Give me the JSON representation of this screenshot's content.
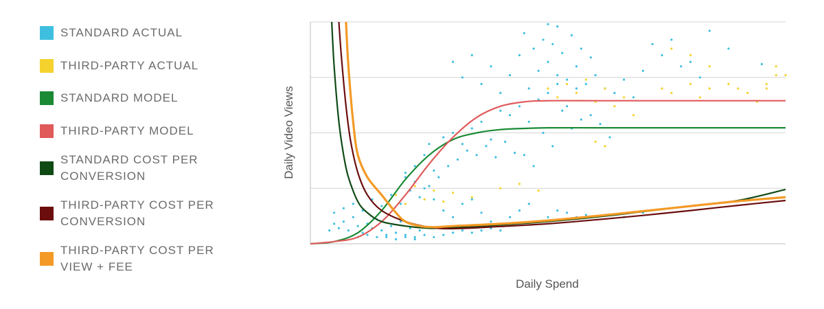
{
  "chart_data": {
    "type": "scatter",
    "title": "",
    "xlabel": "Daily Spend",
    "ylabel": "Daily Video Views",
    "xlim": [
      0,
      100
    ],
    "ylim": [
      0,
      100
    ],
    "grid": true,
    "legend_position": "left",
    "colors": {
      "standard_actual": "#3fbfe0",
      "third_party_actual": "#f5d22e",
      "standard_model": "#1a8a35",
      "third_party_model": "#e05a5a",
      "standard_cpc": "#0f4a14",
      "third_party_cpc": "#6b0d0d",
      "third_party_cpv_fee": "#f39a26"
    },
    "legend": [
      {
        "key": "standard_actual",
        "label": "STANDARD ACTUAL"
      },
      {
        "key": "third_party_actual",
        "label": "THIRD-PARTY ACTUAL"
      },
      {
        "key": "standard_model",
        "label": "STANDARD MODEL"
      },
      {
        "key": "third_party_model",
        "label": "THIRD-PARTY MODEL"
      },
      {
        "key": "standard_cpc",
        "label": "STANDARD COST PER CONVERSION"
      },
      {
        "key": "third_party_cpc",
        "label": "THIRD-PARTY COST PER CONVERSION"
      },
      {
        "key": "third_party_cpv_fee",
        "label": "THIRD-PARTY COST PER VIEW + FEE"
      }
    ],
    "series": [
      {
        "name": "STANDARD ACTUAL",
        "key": "standard_actual",
        "kind": "scatter",
        "points": [
          [
            4,
            6
          ],
          [
            5,
            9
          ],
          [
            6,
            7
          ],
          [
            7,
            10
          ],
          [
            8,
            6
          ],
          [
            9,
            12
          ],
          [
            10,
            8
          ],
          [
            11,
            5
          ],
          [
            12,
            9
          ],
          [
            13,
            7
          ],
          [
            14,
            11
          ],
          [
            15,
            6
          ],
          [
            16,
            4
          ],
          [
            17,
            8
          ],
          [
            18,
            5
          ],
          [
            19,
            10
          ],
          [
            20,
            4
          ],
          [
            21,
            7
          ],
          [
            22,
            3
          ],
          [
            23,
            6
          ],
          [
            5,
            14
          ],
          [
            7,
            16
          ],
          [
            9,
            18
          ],
          [
            11,
            15
          ],
          [
            13,
            20
          ],
          [
            15,
            17
          ],
          [
            17,
            22
          ],
          [
            19,
            18
          ],
          [
            21,
            24
          ],
          [
            23,
            21
          ],
          [
            25,
            26
          ],
          [
            27,
            30
          ],
          [
            29,
            35
          ],
          [
            31,
            38
          ],
          [
            33,
            42
          ],
          [
            35,
            40
          ],
          [
            37,
            44
          ],
          [
            39,
            39
          ],
          [
            41,
            46
          ],
          [
            43,
            41
          ],
          [
            10,
            3
          ],
          [
            12,
            4
          ],
          [
            14,
            3
          ],
          [
            16,
            3
          ],
          [
            18,
            2
          ],
          [
            20,
            3
          ],
          [
            22,
            2
          ],
          [
            24,
            4
          ],
          [
            26,
            3
          ],
          [
            28,
            4
          ],
          [
            30,
            5
          ],
          [
            32,
            6
          ],
          [
            34,
            5
          ],
          [
            36,
            6
          ],
          [
            38,
            7
          ],
          [
            40,
            6
          ],
          [
            20,
            30
          ],
          [
            22,
            35
          ],
          [
            24,
            40
          ],
          [
            25,
            45
          ],
          [
            26,
            33
          ],
          [
            28,
            48
          ],
          [
            30,
            50
          ],
          [
            32,
            45
          ],
          [
            34,
            52
          ],
          [
            36,
            55
          ],
          [
            38,
            47
          ],
          [
            40,
            60
          ],
          [
            42,
            58
          ],
          [
            44,
            62
          ],
          [
            46,
            55
          ],
          [
            48,
            65
          ],
          [
            50,
            68
          ],
          [
            52,
            72
          ],
          [
            54,
            62
          ],
          [
            56,
            70
          ],
          [
            30,
            82
          ],
          [
            32,
            75
          ],
          [
            34,
            85
          ],
          [
            36,
            72
          ],
          [
            38,
            80
          ],
          [
            40,
            68
          ],
          [
            42,
            76
          ],
          [
            44,
            85
          ],
          [
            46,
            70
          ],
          [
            48,
            78
          ],
          [
            50,
            82
          ],
          [
            52,
            76
          ],
          [
            54,
            74
          ],
          [
            56,
            80
          ],
          [
            58,
            72
          ],
          [
            60,
            76
          ],
          [
            62,
            70
          ],
          [
            64,
            68
          ],
          [
            66,
            74
          ],
          [
            68,
            66
          ],
          [
            45,
            95
          ],
          [
            47,
            88
          ],
          [
            49,
            92
          ],
          [
            51,
            90
          ],
          [
            53,
            86
          ],
          [
            55,
            94
          ],
          [
            57,
            88
          ],
          [
            59,
            84
          ],
          [
            50,
            99
          ],
          [
            52,
            98
          ],
          [
            45,
            40
          ],
          [
            47,
            35
          ],
          [
            49,
            50
          ],
          [
            51,
            44
          ],
          [
            53,
            60
          ],
          [
            55,
            52
          ],
          [
            57,
            56
          ],
          [
            59,
            58
          ],
          [
            61,
            54
          ],
          [
            63,
            48
          ],
          [
            72,
            90
          ],
          [
            74,
            85
          ],
          [
            76,
            92
          ],
          [
            78,
            80
          ],
          [
            70,
            78
          ],
          [
            80,
            82
          ],
          [
            82,
            75
          ],
          [
            84,
            96
          ],
          [
            88,
            88
          ],
          [
            95,
            81
          ],
          [
            28,
            15
          ],
          [
            30,
            12
          ],
          [
            32,
            18
          ],
          [
            34,
            20
          ],
          [
            36,
            14
          ],
          [
            38,
            10
          ],
          [
            26,
            20
          ],
          [
            24,
            25
          ],
          [
            22,
            28
          ],
          [
            20,
            32
          ],
          [
            42,
            12
          ],
          [
            44,
            15
          ],
          [
            46,
            18
          ],
          [
            48,
            10
          ],
          [
            50,
            12
          ],
          [
            52,
            15
          ],
          [
            54,
            14
          ],
          [
            56,
            12
          ],
          [
            58,
            13
          ],
          [
            62,
            13
          ],
          [
            66,
            12
          ],
          [
            70,
            14
          ]
        ]
      },
      {
        "name": "THIRD-PARTY ACTUAL",
        "key": "third_party_actual",
        "kind": "scatter",
        "points": [
          [
            18,
            22
          ],
          [
            20,
            18
          ],
          [
            22,
            26
          ],
          [
            24,
            20
          ],
          [
            26,
            24
          ],
          [
            28,
            19
          ],
          [
            30,
            23
          ],
          [
            34,
            21
          ],
          [
            40,
            25
          ],
          [
            44,
            27
          ],
          [
            48,
            24
          ],
          [
            50,
            70
          ],
          [
            52,
            66
          ],
          [
            54,
            72
          ],
          [
            56,
            68
          ],
          [
            58,
            74
          ],
          [
            60,
            64
          ],
          [
            62,
            70
          ],
          [
            64,
            62
          ],
          [
            66,
            66
          ],
          [
            68,
            58
          ],
          [
            60,
            46
          ],
          [
            62,
            44
          ],
          [
            74,
            70
          ],
          [
            76,
            68
          ],
          [
            80,
            72
          ],
          [
            82,
            66
          ],
          [
            84,
            70
          ],
          [
            88,
            72
          ],
          [
            90,
            70
          ],
          [
            92,
            68
          ],
          [
            94,
            64
          ],
          [
            96,
            72
          ],
          [
            98,
            80
          ],
          [
            100,
            76
          ],
          [
            76,
            88
          ],
          [
            80,
            85
          ],
          [
            84,
            80
          ],
          [
            96,
            70
          ],
          [
            98,
            76
          ]
        ]
      },
      {
        "name": "STANDARD MODEL",
        "key": "standard_model",
        "kind": "line",
        "points": [
          [
            0,
            0
          ],
          [
            5,
            1
          ],
          [
            10,
            5
          ],
          [
            15,
            15
          ],
          [
            20,
            29
          ],
          [
            25,
            40
          ],
          [
            30,
            47
          ],
          [
            35,
            50
          ],
          [
            40,
            51.5
          ],
          [
            45,
            52
          ],
          [
            50,
            52.3
          ],
          [
            60,
            52.3
          ],
          [
            70,
            52.3
          ],
          [
            80,
            52.3
          ],
          [
            90,
            52.3
          ],
          [
            100,
            52.3
          ]
        ]
      },
      {
        "name": "THIRD-PARTY MODEL",
        "key": "third_party_model",
        "kind": "line",
        "points": [
          [
            0,
            0
          ],
          [
            5,
            1
          ],
          [
            10,
            3
          ],
          [
            15,
            10
          ],
          [
            20,
            22
          ],
          [
            25,
            36
          ],
          [
            30,
            48
          ],
          [
            35,
            57
          ],
          [
            40,
            62
          ],
          [
            45,
            64
          ],
          [
            50,
            64.5
          ],
          [
            60,
            64.5
          ],
          [
            70,
            64.5
          ],
          [
            80,
            64.5
          ],
          [
            90,
            64.5
          ],
          [
            100,
            64.5
          ]
        ]
      },
      {
        "name": "STANDARD COST PER CONVERSION",
        "key": "standard_cpc",
        "kind": "line",
        "points": [
          [
            4.5,
            100
          ],
          [
            5,
            80
          ],
          [
            6,
            55
          ],
          [
            7,
            40
          ],
          [
            8,
            30
          ],
          [
            10,
            19
          ],
          [
            12,
            14
          ],
          [
            15,
            10
          ],
          [
            20,
            8
          ],
          [
            25,
            7
          ],
          [
            30,
            7.3
          ],
          [
            40,
            8.5
          ],
          [
            50,
            10
          ],
          [
            60,
            12
          ],
          [
            70,
            14.5
          ],
          [
            80,
            17
          ],
          [
            90,
            19.5
          ],
          [
            100,
            24.5
          ]
        ]
      },
      {
        "name": "THIRD-PARTY COST PER CONVERSION",
        "key": "third_party_cpc",
        "kind": "line",
        "points": [
          [
            6,
            100
          ],
          [
            6.5,
            85
          ],
          [
            7.5,
            62
          ],
          [
            8.5,
            46
          ],
          [
            10,
            32
          ],
          [
            12,
            22
          ],
          [
            15,
            15
          ],
          [
            20,
            10
          ],
          [
            25,
            7.5
          ],
          [
            30,
            6.8
          ],
          [
            40,
            7.8
          ],
          [
            50,
            9
          ],
          [
            60,
            10.8
          ],
          [
            70,
            12.8
          ],
          [
            80,
            15
          ],
          [
            90,
            17.3
          ],
          [
            100,
            19.5
          ]
        ]
      },
      {
        "name": "THIRD-PARTY COST PER VIEW + FEE",
        "key": "third_party_cpv_fee",
        "kind": "line",
        "points": [
          [
            7.5,
            100
          ],
          [
            8,
            80
          ],
          [
            9,
            55
          ],
          [
            10,
            40
          ],
          [
            12,
            30
          ],
          [
            15,
            22
          ],
          [
            18,
            14
          ],
          [
            20,
            10
          ],
          [
            23,
            8
          ],
          [
            26,
            7.5
          ],
          [
            30,
            8
          ],
          [
            40,
            9
          ],
          [
            50,
            10.5
          ],
          [
            60,
            12.5
          ],
          [
            70,
            14.7
          ],
          [
            80,
            17
          ],
          [
            90,
            19.2
          ],
          [
            100,
            21
          ]
        ]
      }
    ]
  }
}
